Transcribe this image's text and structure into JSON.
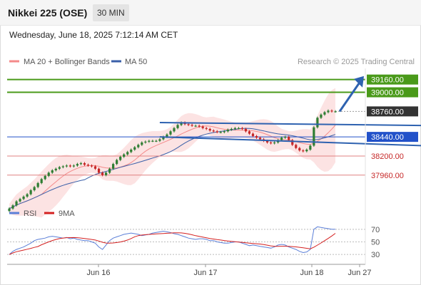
{
  "header": {
    "title": "Nikkei 225 (OSE)",
    "timeframe": "30 MIN",
    "datetime": "Wednesday, June 18, 2025 7:12:14 AM CET"
  },
  "legend": {
    "ma20_label": "MA 20 + Bollinger Bands",
    "ma50_label": "MA 50",
    "rsi_label": "RSI",
    "rsi_ma_label": "9MA"
  },
  "credit": "Research © 2025 Trading Central",
  "colors": {
    "up": "#2e7d32",
    "down": "#c62828",
    "ma20": "#f48a8a",
    "ma50": "#3a5fa8",
    "band_fill": "#fbdcdc",
    "green_level": "#4a9a1a",
    "blue_level": "#2251c9",
    "red_level": "#e08080",
    "pivot_tag": "#333333",
    "arrow": "#2e62b0",
    "rsi": "#5b7fd8",
    "rsi_ma": "#d42020"
  },
  "chart_data": {
    "type": "candlestick",
    "interval": "30 MIN",
    "x_labels": [
      "Jun 16",
      "Jun 17",
      "Jun 18",
      "Jun 27"
    ],
    "y_range": [
      37600,
      39300
    ],
    "levels": [
      {
        "value": 39160.0,
        "label": "39160.00",
        "kind": "resistance"
      },
      {
        "value": 39000.0,
        "label": "39000.00",
        "kind": "resistance"
      },
      {
        "value": 38760.0,
        "label": "38760.00",
        "kind": "pivot"
      },
      {
        "value": 38440.0,
        "label": "38440.00",
        "kind": "support"
      },
      {
        "value": 38200.0,
        "label": "38200.00",
        "kind": "support"
      },
      {
        "value": 37960.0,
        "label": "37960.00",
        "kind": "support"
      }
    ],
    "closes": [
      37540,
      37580,
      37630,
      37660,
      37690,
      37720,
      37770,
      37810,
      37860,
      37910,
      37950,
      37990,
      38020,
      38040,
      38060,
      38070,
      38080,
      38070,
      38080,
      38100,
      38110,
      38090,
      38080,
      38070,
      38040,
      37990,
      37960,
      37990,
      38040,
      38100,
      38150,
      38190,
      38220,
      38250,
      38280,
      38310,
      38340,
      38370,
      38380,
      38390,
      38390,
      38390,
      38410,
      38440,
      38470,
      38510,
      38550,
      38590,
      38620,
      38600,
      38590,
      38580,
      38580,
      38570,
      38550,
      38540,
      38520,
      38510,
      38500,
      38500,
      38510,
      38530,
      38540,
      38550,
      38550,
      38540,
      38510,
      38480,
      38450,
      38430,
      38410,
      38390,
      38370,
      38360,
      38370,
      38400,
      38430,
      38440,
      38400,
      38340,
      38300,
      38270,
      38260,
      38280,
      38330,
      38560,
      38680,
      38720,
      38750,
      38770,
      38760,
      38760
    ],
    "rsi": {
      "levels": [
        70,
        50,
        30
      ],
      "range": [
        20,
        80
      ],
      "values": [
        30,
        35,
        38,
        40,
        42,
        45,
        48,
        52,
        54,
        55,
        56,
        58,
        59,
        58,
        57,
        56,
        57,
        55,
        56,
        54,
        53,
        52,
        52,
        50,
        48,
        42,
        38,
        45,
        52,
        56,
        58,
        60,
        62,
        63,
        64,
        63,
        62,
        60,
        61,
        62,
        64,
        65,
        66,
        67,
        66,
        65,
        63,
        62,
        60,
        58,
        56,
        55,
        54,
        55,
        55,
        54,
        52,
        52,
        50,
        49,
        48,
        48,
        49,
        50,
        50,
        48,
        46,
        44,
        45,
        44,
        43,
        42,
        41,
        40,
        42,
        45,
        46,
        45,
        42,
        40,
        38,
        35,
        33,
        34,
        38,
        70,
        74,
        73,
        72,
        71,
        70,
        70
      ]
    }
  }
}
